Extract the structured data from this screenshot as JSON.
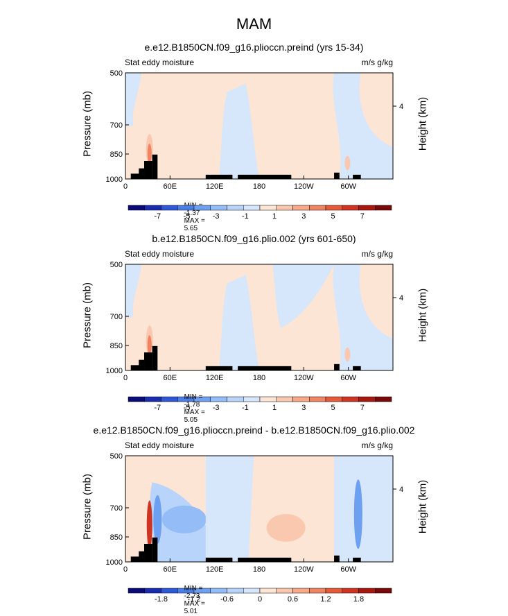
{
  "main_title": "MAM",
  "chart_data": [
    {
      "type": "heatmap",
      "title": "e.e12.B1850CN.f09_g16.plioccn.preind (yrs 15-34)",
      "left_label": "Stat eddy moisture",
      "units": "m/s g/kg",
      "ylabel": "Pressure (mb)",
      "y2label": "Height (km)",
      "y_ticks": [
        "500",
        "700",
        "850",
        "1000"
      ],
      "y2_ticks": [
        "4"
      ],
      "x_ticks": [
        "0",
        "60E",
        "120E",
        "180",
        "120W",
        "60W"
      ],
      "min_label": "MIN =",
      "min_value": "-1.37",
      "max_label": "MAX =",
      "max_value": "5.65",
      "colorbar_labels": [
        "-7",
        "-5",
        "-3",
        "-1",
        "1",
        "3",
        "5",
        "7"
      ],
      "colorbar_colors": [
        "#0a0a78",
        "#1a2cb0",
        "#2f58d8",
        "#4a7ee8",
        "#6ea0f2",
        "#94bcf7",
        "#b8d4fa",
        "#d6e6fb",
        "#fde5d6",
        "#f9c8ae",
        "#f6a888",
        "#f08462",
        "#e65a3a",
        "#cf3322",
        "#a8180f",
        "#7a0808"
      ]
    },
    {
      "type": "heatmap",
      "title": "b.e12.B1850CN.f09_g16.plio.002 (yrs 601-650)",
      "left_label": "Stat eddy moisture",
      "units": "m/s g/kg",
      "ylabel": "Pressure (mb)",
      "y2label": "Height (km)",
      "y_ticks": [
        "500",
        "700",
        "850",
        "1000"
      ],
      "y2_ticks": [
        "4"
      ],
      "x_ticks": [
        "0",
        "60E",
        "120E",
        "180",
        "120W",
        "60W"
      ],
      "min_label": "MIN =",
      "min_value": "-1.78",
      "max_label": "MAX =",
      "max_value": "5.05",
      "colorbar_labels": [
        "-7",
        "-5",
        "-3",
        "-1",
        "1",
        "3",
        "5",
        "7"
      ],
      "colorbar_colors": [
        "#0a0a78",
        "#1a2cb0",
        "#2f58d8",
        "#4a7ee8",
        "#6ea0f2",
        "#94bcf7",
        "#b8d4fa",
        "#d6e6fb",
        "#fde5d6",
        "#f9c8ae",
        "#f6a888",
        "#f08462",
        "#e65a3a",
        "#cf3322",
        "#a8180f",
        "#7a0808"
      ]
    },
    {
      "type": "heatmap",
      "title": "e.e12.B1850CN.f09_g16.plioccn.preind - b.e12.B1850CN.f09_g16.plio.002",
      "left_label": "Stat eddy moisture",
      "units": "m/s g/kg",
      "ylabel": "Pressure (mb)",
      "y2label": "Height (km)",
      "y_ticks": [
        "500",
        "700",
        "850",
        "1000"
      ],
      "y2_ticks": [
        "4"
      ],
      "x_ticks": [
        "0",
        "60E",
        "120E",
        "180",
        "120W",
        "60W"
      ],
      "min_label": "MIN =",
      "min_value": "-2.73",
      "max_label": "MAX =",
      "max_value": "5.01",
      "colorbar_labels": [
        "-1.8",
        "-1.2",
        "-0.6",
        "0",
        "0.6",
        "1.2",
        "1.8"
      ],
      "colorbar_colors": [
        "#0a0a78",
        "#1a2cb0",
        "#2f58d8",
        "#4a7ee8",
        "#6ea0f2",
        "#94bcf7",
        "#b8d4fa",
        "#d6e6fb",
        "#fde5d6",
        "#f9c8ae",
        "#f6a888",
        "#f08462",
        "#e65a3a",
        "#cf3322",
        "#a8180f",
        "#7a0808"
      ]
    }
  ]
}
